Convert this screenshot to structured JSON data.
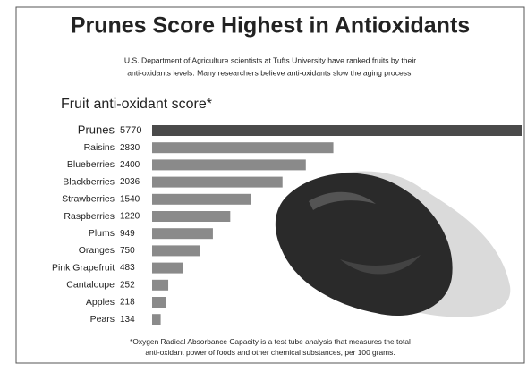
{
  "chart_data": {
    "type": "bar",
    "orientation": "horizontal",
    "title": "Prunes Score Highest in Antioxidants",
    "subtitle": [
      "U.S. Department of Agriculture scientists at Tufts University have ranked fruits by their",
      "anti-oxidants levels.  Many researchers believe anti-oxidants slow the aging process."
    ],
    "chart_title": "Fruit anti-oxidant score*",
    "categories": [
      "Prunes",
      "Raisins",
      "Blueberries",
      "Blackberries",
      "Strawberries",
      "Raspberries",
      "Plums",
      "Oranges",
      "Pink Grapefruit",
      "Cantaloupe",
      "Apples",
      "Pears"
    ],
    "values": [
      5770,
      2830,
      2400,
      2036,
      1540,
      1220,
      949,
      750,
      483,
      252,
      218,
      134
    ],
    "colors": [
      "#4a4a4a",
      "#8a8a8a",
      "#8a8a8a",
      "#8a8a8a",
      "#8a8a8a",
      "#8a8a8a",
      "#8a8a8a",
      "#8a8a8a",
      "#8a8a8a",
      "#8a8a8a",
      "#8a8a8a",
      "#8a8a8a"
    ],
    "footnote": [
      "*Oxygen Radical Absorbance Capacity is a test tube analysis that measures the total",
      "anti-oxidant power of foods and other chemical substances, per 100 grams."
    ]
  }
}
